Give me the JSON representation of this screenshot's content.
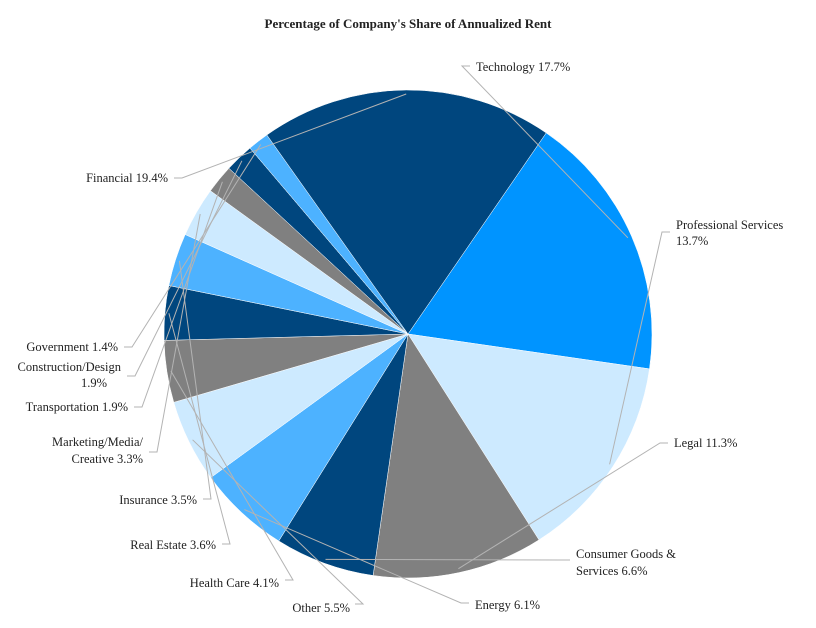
{
  "chart_data": {
    "type": "pie",
    "title": "Percentage of Company's Share of Annualized Rent",
    "slices": [
      {
        "label": "Technology 17.7%",
        "value": 17.7,
        "color": "#0094ff"
      },
      {
        "label": "Professional Services 13.7%",
        "value": 13.7,
        "color": "#cdeaff"
      },
      {
        "label": "Legal 11.3%",
        "value": 11.3,
        "color": "#808080"
      },
      {
        "label": "Consumer Goods & Services 6.6%",
        "value": 6.6,
        "color": "#00467e"
      },
      {
        "label": "Energy 6.1%",
        "value": 6.1,
        "color": "#4db2ff"
      },
      {
        "label": "Other 5.5%",
        "value": 5.5,
        "color": "#cdeaff"
      },
      {
        "label": "Health Care 4.1%",
        "value": 4.1,
        "color": "#808080"
      },
      {
        "label": "Real Estate 3.6%",
        "value": 3.6,
        "color": "#00467e"
      },
      {
        "label": "Insurance 3.5%",
        "value": 3.5,
        "color": "#4db2ff"
      },
      {
        "label": "Marketing/Media/ Creative 3.3%",
        "value": 3.3,
        "color": "#cdeaff"
      },
      {
        "label": "Transportation 1.9%",
        "value": 1.9,
        "color": "#808080"
      },
      {
        "label": "Construction/Design 1.9%",
        "value": 1.9,
        "color": "#00467e"
      },
      {
        "label": "Government 1.4%",
        "value": 1.4,
        "color": "#4db2ff"
      },
      {
        "label": "Financial 19.4%",
        "value": 19.4,
        "color": "#00467e"
      }
    ]
  }
}
